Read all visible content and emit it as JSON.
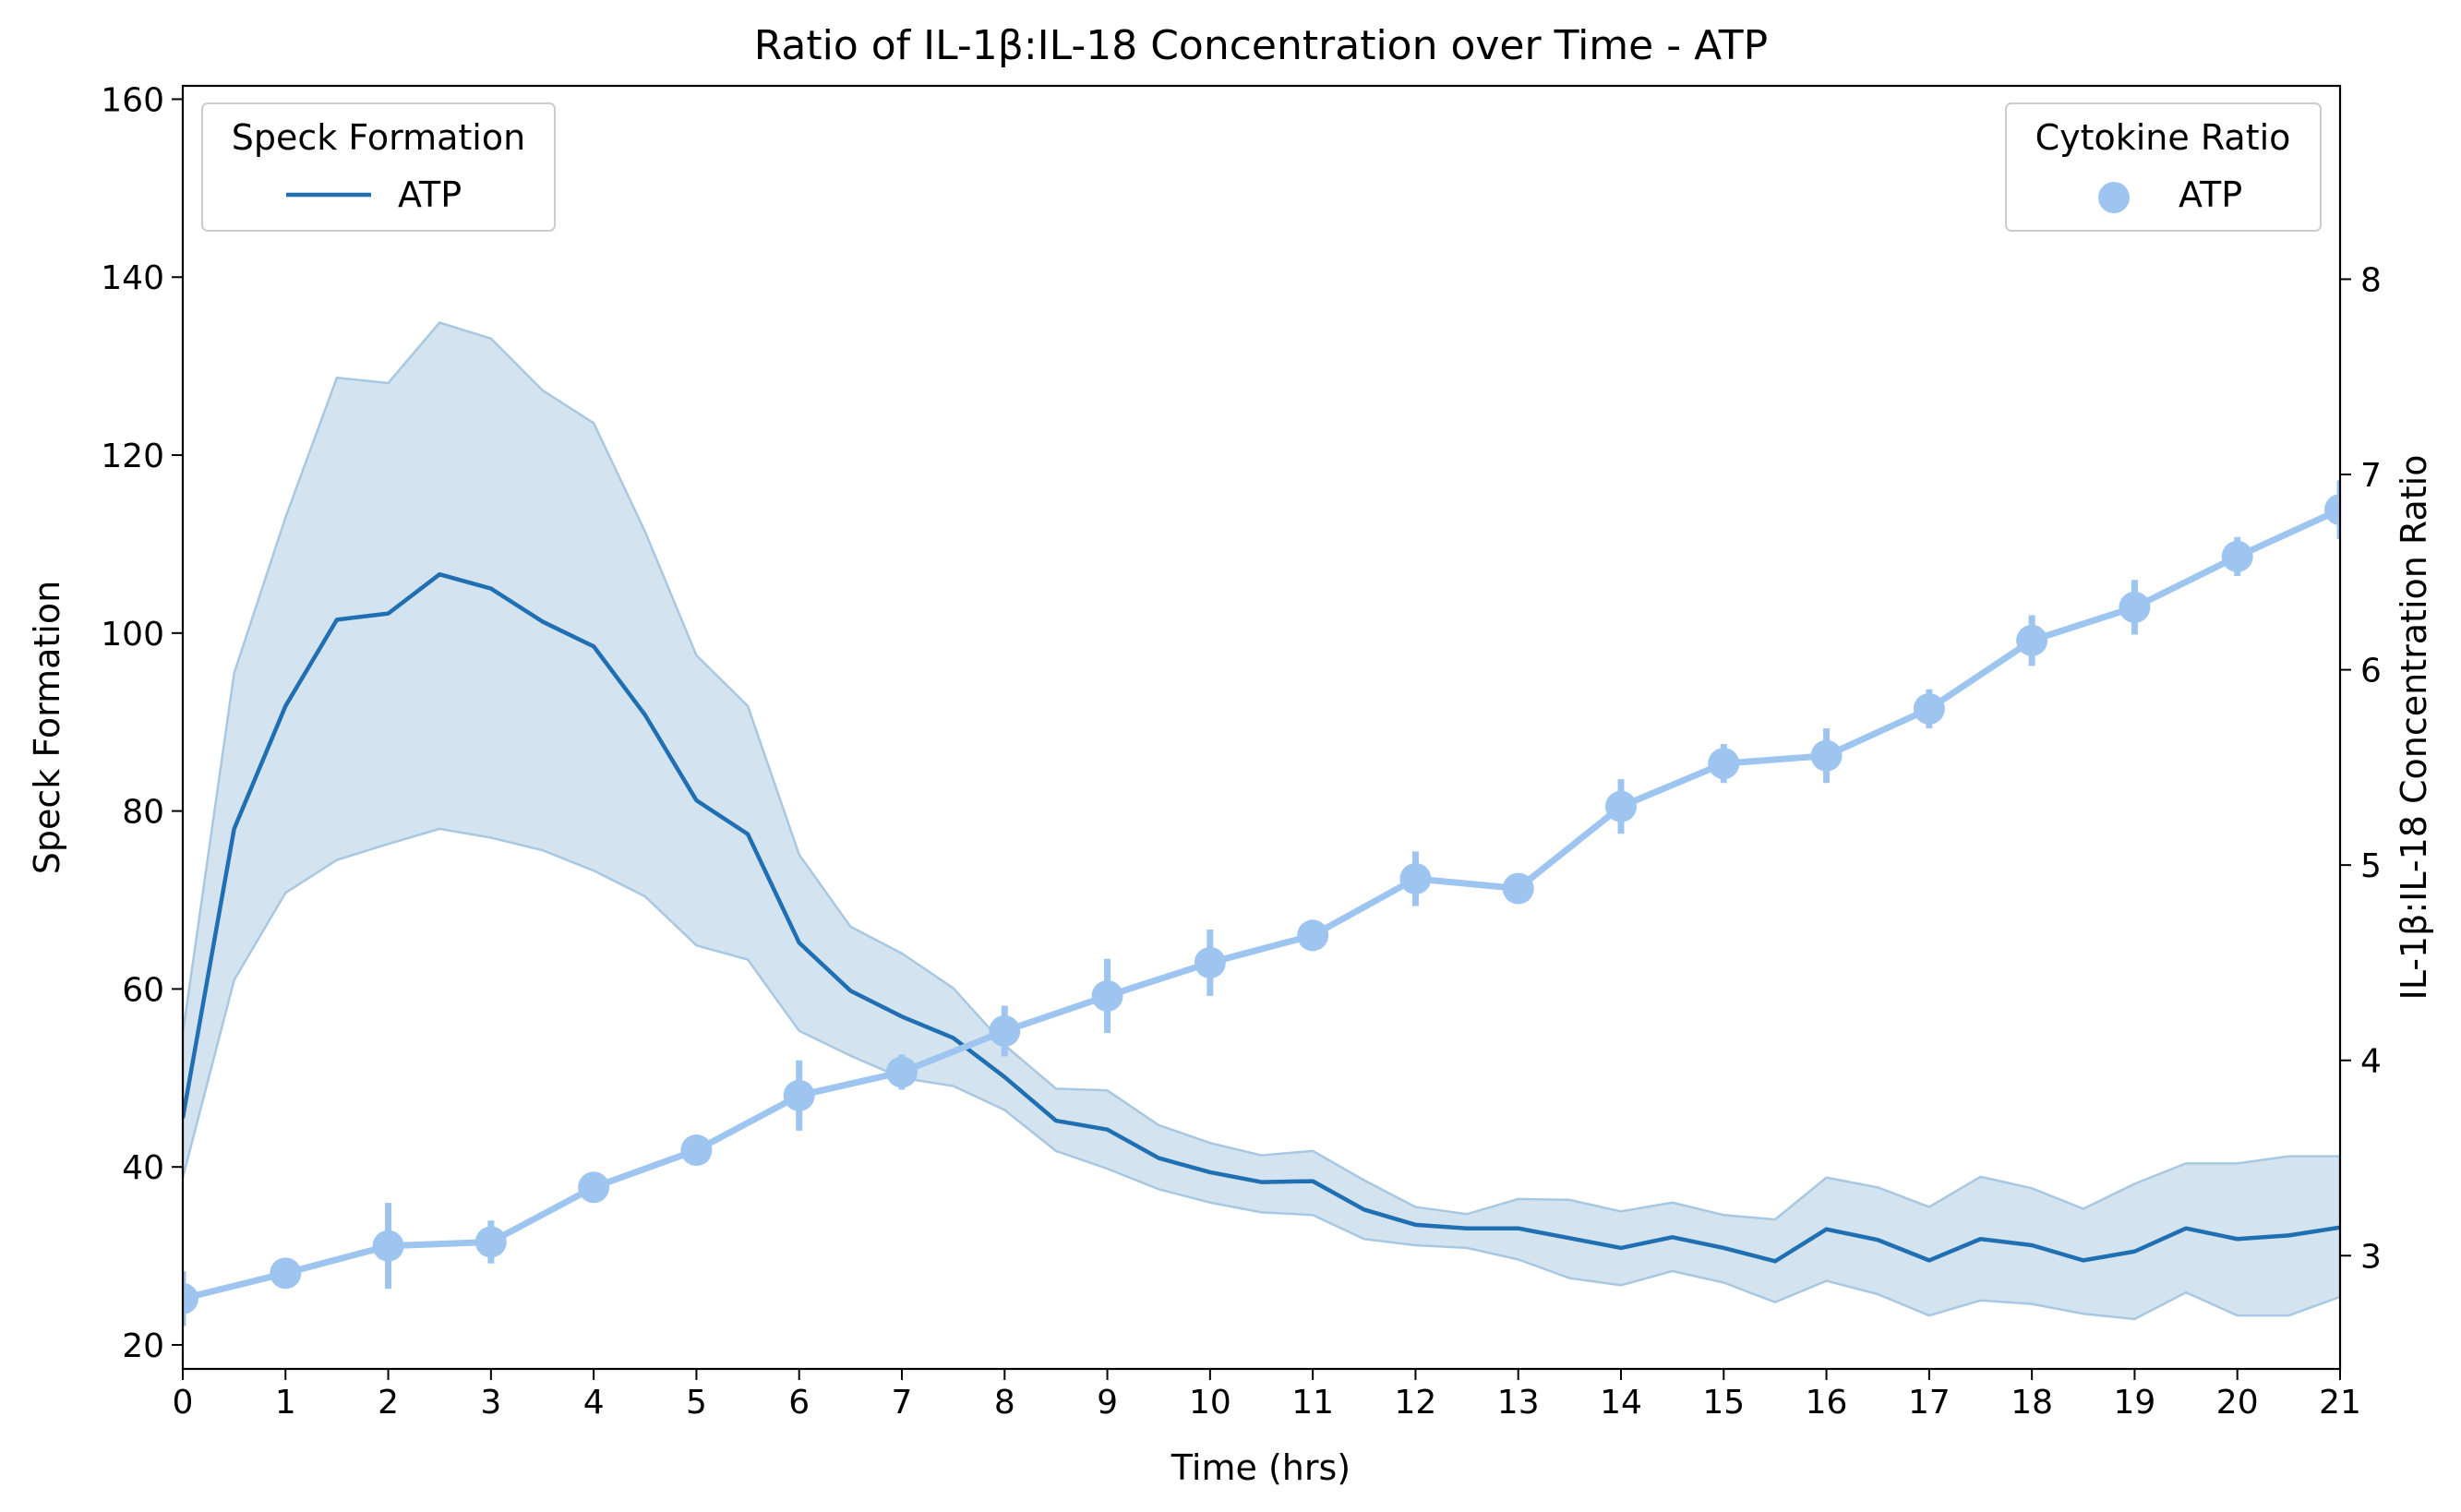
{
  "chart_data": {
    "type": "line",
    "title": "Ratio of IL-1β:IL-18 Concentration over Time - ATP",
    "xlabel": "Time (hrs)",
    "ylabel_left": "Speck Formation",
    "ylabel_right": "IL-1β:IL-18 Concentration Ratio",
    "xlim": [
      0,
      21
    ],
    "ylim_left": [
      17.3,
      161.5
    ],
    "ylim_right": [
      2.42,
      8.99
    ],
    "x_ticks": [
      "0",
      "1",
      "2",
      "3",
      "4",
      "5",
      "6",
      "7",
      "8",
      "9",
      "10",
      "11",
      "12",
      "13",
      "14",
      "15",
      "16",
      "17",
      "18",
      "19",
      "20",
      "21"
    ],
    "y_left_ticks": [
      "20",
      "40",
      "60",
      "80",
      "100",
      "120",
      "140",
      "160"
    ],
    "y_right_ticks": [
      "3",
      "4",
      "5",
      "6",
      "7",
      "8"
    ],
    "grid": false,
    "colors": {
      "speck_line": "#1f6fb2",
      "speck_band": "#a8c8e2",
      "ratio": "#9ec5f0"
    },
    "legend_left": {
      "title": "Speck Formation",
      "entries": [
        "ATP"
      ],
      "placement": "upper-left"
    },
    "legend_right": {
      "title": "Cytokine Ratio",
      "entries": [
        "ATP"
      ],
      "placement": "upper-right"
    },
    "series": [
      {
        "name": "ATP",
        "legend": "Speck Formation",
        "axis": "left",
        "type": "line-with-band",
        "x": [
          0,
          0.5,
          1,
          1.5,
          2,
          2.5,
          3,
          3.5,
          4,
          4.5,
          5,
          5.5,
          6,
          6.5,
          7,
          7.5,
          8,
          8.5,
          9,
          9.5,
          10,
          10.5,
          11,
          11.5,
          12,
          12.5,
          13,
          13.5,
          14,
          14.5,
          15,
          15.5,
          16,
          16.5,
          17,
          17.5,
          18,
          18.5,
          19,
          19.5,
          20,
          20.5,
          21
        ],
        "y": [
          45.5,
          78,
          91.8,
          101.5,
          102.2,
          106.6,
          105,
          101.3,
          98.5,
          90.8,
          81.2,
          77.4,
          65.2,
          59.8,
          56.9,
          54.5,
          50.1,
          45.2,
          44.2,
          41,
          39.4,
          38.3,
          38.4,
          35.2,
          33.5,
          33.1,
          33.1,
          32,
          30.9,
          32.1,
          30.9,
          29.4,
          33,
          31.8,
          29.5,
          31.9,
          31.2,
          29.5,
          30.5,
          33.1,
          31.9,
          32.3,
          33.2
        ],
        "y_upper": [
          55,
          95.5,
          113,
          128.7,
          128.1,
          134.9,
          133.1,
          127.3,
          123.6,
          111.4,
          97.5,
          91.8,
          75.1,
          67,
          64,
          60.1,
          53.7,
          48.8,
          48.6,
          44.7,
          42.7,
          41.3,
          41.8,
          38.5,
          35.5,
          34.7,
          36.4,
          36.3,
          35,
          36,
          34.6,
          34.1,
          38.8,
          37.7,
          35.5,
          38.9,
          37.6,
          35.3,
          38.1,
          40.4,
          40.4,
          41.2,
          41.2
        ],
        "y_lower": [
          38.8,
          61,
          70.8,
          74.5,
          76.3,
          78,
          77,
          75.6,
          73.3,
          70.4,
          64.9,
          63.3,
          55.3,
          52.5,
          50,
          49.1,
          46.4,
          41.8,
          39.8,
          37.5,
          36,
          34.9,
          34.6,
          31.9,
          31.2,
          30.9,
          29.6,
          27.5,
          26.7,
          28.3,
          27,
          24.8,
          27.2,
          25.7,
          23.3,
          25,
          24.6,
          23.5,
          22.9,
          25.9,
          23.3,
          23.3,
          25.4
        ]
      },
      {
        "name": "ATP",
        "legend": "Cytokine Ratio",
        "axis": "right",
        "type": "pointplot",
        "x": [
          0,
          1,
          2,
          3,
          4,
          5,
          6,
          7,
          8,
          9,
          10,
          11,
          12,
          13,
          14,
          15,
          16,
          17,
          18,
          19,
          20,
          21
        ],
        "y": [
          2.78,
          2.91,
          3.05,
          3.07,
          3.35,
          3.54,
          3.82,
          3.94,
          4.15,
          4.33,
          4.5,
          4.64,
          4.93,
          4.88,
          5.3,
          5.52,
          5.56,
          5.8,
          6.15,
          6.32,
          6.58,
          6.82
        ],
        "error_upper": [
          2.92,
          2.95,
          3.27,
          3.18,
          3.37,
          3.58,
          4,
          4.03,
          4.28,
          4.52,
          4.67,
          4.72,
          5.07,
          4.92,
          5.44,
          5.62,
          5.7,
          5.9,
          6.28,
          6.46,
          6.68,
          6.97
        ],
        "error_lower": [
          2.64,
          2.87,
          2.83,
          2.96,
          3.33,
          3.5,
          3.64,
          3.85,
          4.02,
          4.14,
          4.33,
          4.56,
          4.79,
          4.84,
          5.16,
          5.42,
          5.42,
          5.7,
          6.02,
          6.18,
          6.48,
          6.67
        ]
      }
    ]
  }
}
